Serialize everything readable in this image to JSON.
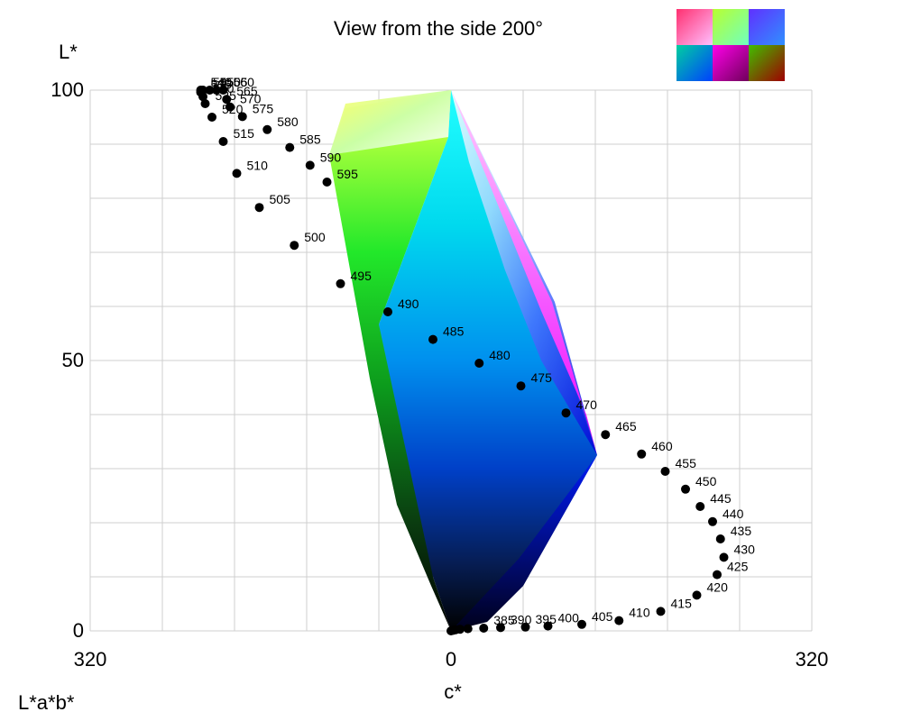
{
  "chart_data": {
    "type": "scatter",
    "title": "View from the side 200°",
    "ylabel": "L*",
    "xlabel": "c*",
    "corner_label": "L*a*b*",
    "xlim": [
      -320,
      320
    ],
    "ylim": [
      0,
      100
    ],
    "x_ticks": [
      {
        "value": -320,
        "label": "320"
      },
      {
        "value": 0,
        "label": "0"
      },
      {
        "value": 320,
        "label": "320"
      }
    ],
    "y_ticks": [
      {
        "value": 0,
        "label": "0"
      },
      {
        "value": 50,
        "label": "50"
      },
      {
        "value": 100,
        "label": "100"
      }
    ],
    "grid": true,
    "series": [
      {
        "points": [
          {
            "c": 0,
            "L": 0,
            "label": ""
          },
          {
            "c": 2,
            "L": 0.1,
            "label": ""
          },
          {
            "c": 4,
            "L": 0.2,
            "label": ""
          },
          {
            "c": 8,
            "L": 0.3,
            "label": ""
          },
          {
            "c": 15,
            "L": 0.4,
            "label": ""
          },
          {
            "c": 29,
            "L": 0.5,
            "label": "385"
          },
          {
            "c": 44,
            "L": 0.6,
            "label": "390"
          },
          {
            "c": 66,
            "L": 0.7,
            "label": "395"
          },
          {
            "c": 86,
            "L": 0.9,
            "label": "400"
          },
          {
            "c": 116,
            "L": 1.2,
            "label": "405"
          },
          {
            "c": 149,
            "L": 1.9,
            "label": "410"
          },
          {
            "c": 186,
            "L": 3.6,
            "label": "415"
          },
          {
            "c": 218,
            "L": 6.6,
            "label": "420"
          },
          {
            "c": 236,
            "L": 10.4,
            "label": "425"
          },
          {
            "c": 242,
            "L": 13.6,
            "label": "430"
          },
          {
            "c": 239,
            "L": 17.0,
            "label": "435"
          },
          {
            "c": 232,
            "L": 20.2,
            "label": "440"
          },
          {
            "c": 221,
            "L": 23.0,
            "label": "445"
          },
          {
            "c": 208,
            "L": 26.2,
            "label": "450"
          },
          {
            "c": 190,
            "L": 29.5,
            "label": "455"
          },
          {
            "c": 169,
            "L": 32.7,
            "label": "460"
          },
          {
            "c": 137,
            "L": 36.3,
            "label": "465"
          },
          {
            "c": 102,
            "L": 40.3,
            "label": "470"
          },
          {
            "c": 62,
            "L": 45.3,
            "label": "475"
          },
          {
            "c": 25,
            "L": 49.5,
            "label": "480"
          },
          {
            "c": -16,
            "L": 53.9,
            "label": "485"
          },
          {
            "c": -56,
            "L": 59.0,
            "label": "490"
          },
          {
            "c": -98,
            "L": 64.2,
            "label": "495"
          },
          {
            "c": -139,
            "L": 71.3,
            "label": "500"
          },
          {
            "c": -170,
            "L": 78.3,
            "label": "505"
          },
          {
            "c": -190,
            "L": 84.6,
            "label": "510"
          },
          {
            "c": -202,
            "L": 90.5,
            "label": "515"
          },
          {
            "c": -212,
            "L": 95.0,
            "label": "520"
          },
          {
            "c": -218,
            "L": 97.5,
            "label": "525"
          },
          {
            "c": -220,
            "L": 98.8,
            "label": "530"
          },
          {
            "c": -222,
            "L": 99.6,
            "label": "535"
          },
          {
            "c": -222,
            "L": 100,
            "label": "540"
          },
          {
            "c": -220,
            "L": 100,
            "label": "545"
          },
          {
            "c": -214,
            "L": 100,
            "label": "550"
          },
          {
            "c": -208,
            "L": 100,
            "label": "555"
          },
          {
            "c": -202,
            "L": 100,
            "label": "560"
          },
          {
            "c": -199,
            "L": 98.3,
            "label": "565"
          },
          {
            "c": -196,
            "L": 96.9,
            "label": "570"
          },
          {
            "c": -185,
            "L": 95.1,
            "label": "575"
          },
          {
            "c": -163,
            "L": 92.7,
            "label": "580"
          },
          {
            "c": -143,
            "L": 89.4,
            "label": "585"
          },
          {
            "c": -125,
            "L": 86.1,
            "label": "590"
          },
          {
            "c": -110,
            "L": 83.0,
            "label": "595"
          }
        ]
      }
    ],
    "gamut_solid": {
      "lightness_profile": [
        0,
        12,
        24,
        36,
        48,
        60,
        72,
        84,
        100
      ],
      "chroma_left": [
        0,
        -22,
        -48,
        -74,
        -92,
        -104,
        -112,
        -120,
        -92
      ],
      "chroma_right": [
        0,
        58,
        110,
        130,
        114,
        88,
        62,
        30,
        0
      ]
    },
    "swatches": [
      "#ff00ff",
      "#ffff00",
      "#0000ff",
      "#00ffff",
      "#ff00aa",
      "#ff0000"
    ]
  }
}
